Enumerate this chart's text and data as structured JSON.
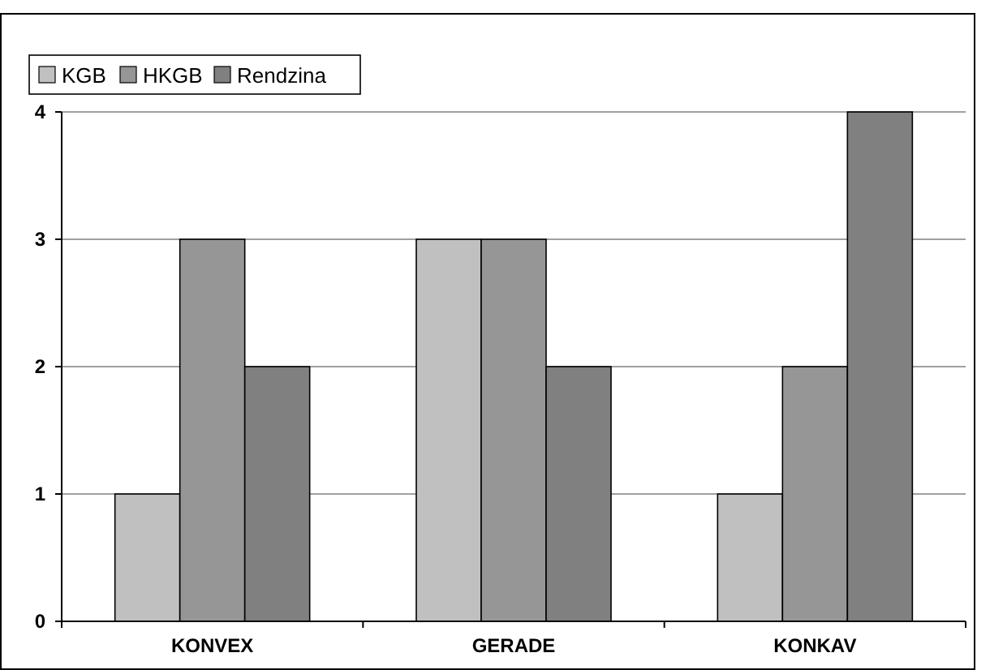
{
  "chart_data": {
    "type": "bar",
    "categories": [
      "KONVEX",
      "GERADE",
      "KONKAV"
    ],
    "series": [
      {
        "name": "KGB",
        "color": "#c0c0c0",
        "values": [
          1,
          3,
          1
        ]
      },
      {
        "name": "HKGB",
        "color": "#969696",
        "values": [
          3,
          3,
          2
        ]
      },
      {
        "name": "Rendzina",
        "color": "#808080",
        "values": [
          2,
          2,
          4
        ]
      }
    ],
    "ylim": [
      0,
      4
    ],
    "yticks": [
      0,
      1,
      2,
      3,
      4
    ],
    "grid": "y",
    "legend": "top left"
  }
}
